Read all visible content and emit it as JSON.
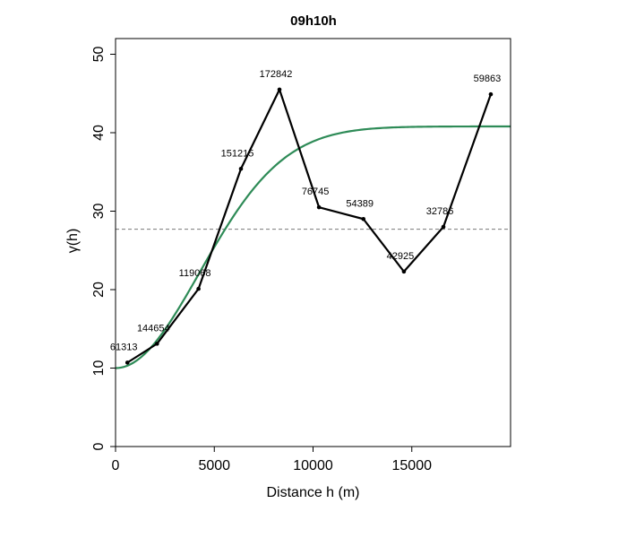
{
  "chart_data": {
    "type": "line",
    "title": "09h10h",
    "xlabel": "Distance h (m)",
    "ylabel": "γ(h)",
    "xlim": [
      0,
      20000
    ],
    "ylim": [
      0,
      52
    ],
    "x_ticks": [
      0,
      5000,
      10000,
      15000
    ],
    "y_ticks": [
      0,
      10,
      20,
      30,
      40,
      50
    ],
    "grid": false,
    "series": [
      {
        "type": "empirical-variogram",
        "color": "#000000",
        "points": [
          {
            "x": 600,
            "y": 10.7,
            "label": "61313"
          },
          {
            "x": 2100,
            "y": 13.1,
            "label": "144654"
          },
          {
            "x": 4200,
            "y": 20.1,
            "label": "119068"
          },
          {
            "x": 6350,
            "y": 35.4,
            "label": "151215"
          },
          {
            "x": 8300,
            "y": 45.5,
            "label": "172842"
          },
          {
            "x": 10300,
            "y": 30.5,
            "label": "76745"
          },
          {
            "x": 12550,
            "y": 29.0,
            "label": "54389"
          },
          {
            "x": 14600,
            "y": 22.3,
            "label": "42925"
          },
          {
            "x": 16600,
            "y": 28.0,
            "label": "32786"
          },
          {
            "x": 19000,
            "y": 44.9,
            "label": "59863"
          }
        ]
      },
      {
        "type": "fitted-model",
        "model": "gaussian",
        "color": "#2e8b57",
        "nugget": 10.0,
        "sill": 40.8,
        "range": 6000
      }
    ],
    "reference_line": {
      "y": 27.7,
      "style": "dashed",
      "color": "#777777"
    }
  }
}
